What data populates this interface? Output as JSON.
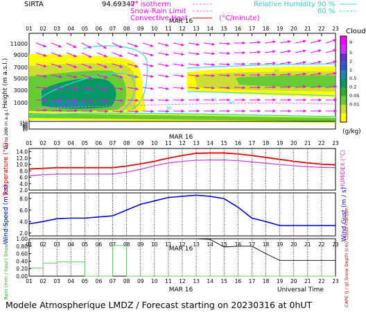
{
  "header": {
    "site": "SIRTA",
    "coords": "94.69347°",
    "legend": {
      "isotherm": "0° isotherm",
      "snow_rain": "Snow-Rain Limit",
      "convective": "Convective Heat",
      "convective_unit": "(°C/minute)",
      "rh_label": "Relative Humidity",
      "rh_90": "90 %",
      "rh_60": "60 %"
    }
  },
  "hours": [
    "01",
    "02",
    "03",
    "04",
    "05",
    "06",
    "07",
    "08",
    "09",
    "10",
    "11",
    "12",
    "13",
    "14",
    "15",
    "16",
    "17",
    "18",
    "19",
    "20",
    "21",
    "22",
    "23"
  ],
  "date_label": "MAR 16",
  "panel_cloud": {
    "ylabel": "Height  (m a.s.l.)",
    "ylabel2": "Up to 200 m a.g.l.",
    "yticks": [
      "11000",
      "9000",
      "7000",
      "5000",
      "3000",
      "1000",
      "150",
      "120",
      "90",
      "60",
      "30",
      "10"
    ],
    "colorbar_title": "Clouds",
    "colorbar_ticks": [
      "9",
      "5",
      "2",
      "1",
      "0.5",
      "0.2",
      "0.05",
      "0.01"
    ],
    "colorbar_unit": "(g/kg)",
    "colorbar_colors": [
      "#ff00ff",
      "#cc33ff",
      "#6633cc",
      "#3355cc",
      "#2288aa",
      "#009966",
      "#33aa33",
      "#66cc33",
      "#ccdd33",
      "#ffff00"
    ],
    "contour_labels": [
      "90",
      "60",
      "90",
      "90",
      "60"
    ]
  },
  "panel_temp": {
    "ylabel": "Temperature (°C)",
    "ylabel_right": "HUMIDEX (°C)",
    "yticks": [
      "14.0",
      "12.0",
      "10.0",
      "8.0",
      "6.0",
      "4.0",
      "2.0"
    ],
    "ylim": [
      2,
      15
    ]
  },
  "panel_wind": {
    "ylabel": "Wind Speed (m / s)",
    "ylabel_right": "Wind Gust (m / s)",
    "yticks": [
      "8.0",
      "6.0",
      "4.0",
      "2.0"
    ],
    "ylim": [
      1.5,
      9
    ]
  },
  "panel_rain": {
    "ylabel": "Rain (mm / hour) Snow (cm / hour)",
    "ylabel_right": "CAPE (J / g) Snow Depth (cm) Cloud Fraction",
    "yticks": [
      "1.00",
      "0.80",
      "0.60",
      "0.40",
      "0.20",
      "0.00"
    ],
    "ylim": [
      0,
      1
    ],
    "xlabel": "Universal Time"
  },
  "colors": {
    "temperature": "#dd0000",
    "humidex": "#cc33cc",
    "wind": "#0000cc",
    "rain": "#66cc66",
    "cloud_fraction": "#000000",
    "rh": "#33dddd",
    "arrows": "#ff00ff",
    "isotherm": "#ff66ff"
  },
  "chart_data": [
    {
      "type": "line",
      "title": "Temperature",
      "x": [
        "01",
        "02",
        "03",
        "04",
        "05",
        "06",
        "07",
        "08",
        "09",
        "10",
        "11",
        "12",
        "13",
        "14",
        "15",
        "16",
        "17",
        "18",
        "19",
        "20",
        "21",
        "22",
        "23"
      ],
      "series": [
        {
          "name": "Temperature (°C)",
          "values": [
            8.6,
            8.8,
            9.0,
            9.0,
            9.0,
            9.0,
            9.0,
            9.5,
            10.2,
            11.0,
            12.0,
            12.8,
            13.5,
            13.6,
            13.6,
            13.3,
            12.8,
            12.2,
            11.6,
            11.0,
            10.5,
            10.1,
            9.9
          ]
        },
        {
          "name": "HUMIDEX (°C)",
          "values": [
            6.5,
            6.8,
            7.0,
            7.0,
            7.0,
            7.0,
            7.0,
            7.6,
            8.5,
            9.6,
            10.5,
            11.0,
            11.3,
            11.4,
            11.4,
            11.2,
            10.8,
            10.4,
            10.0,
            9.6,
            9.3,
            9.1,
            9.0
          ]
        }
      ],
      "ylim": [
        2,
        15
      ]
    },
    {
      "type": "line",
      "title": "Wind Speed",
      "x": [
        "01",
        "02",
        "03",
        "04",
        "05",
        "06",
        "07",
        "08",
        "09",
        "10",
        "11",
        "12",
        "13",
        "14",
        "15",
        "16",
        "17",
        "18",
        "19",
        "20",
        "21",
        "22",
        "23"
      ],
      "series": [
        {
          "name": "Wind Speed (m / s)",
          "values": [
            3.6,
            4.0,
            4.5,
            4.6,
            4.6,
            4.8,
            5.0,
            6.0,
            7.0,
            7.6,
            8.2,
            8.4,
            8.6,
            8.4,
            8.0,
            6.5,
            4.6,
            4.0,
            3.3,
            3.3,
            3.3,
            3.3,
            3.3
          ]
        }
      ],
      "ylim": [
        1.5,
        9
      ]
    },
    {
      "type": "line",
      "title": "Rain / Cloud Fraction",
      "x": [
        "01",
        "02",
        "03",
        "04",
        "05",
        "06",
        "07",
        "08",
        "09",
        "10",
        "11",
        "12",
        "13",
        "14",
        "15",
        "16",
        "17",
        "18",
        "19",
        "20",
        "21",
        "22",
        "23"
      ],
      "series": [
        {
          "name": "Rain (mm / hour)",
          "values": [
            0.22,
            0.35,
            0.38,
            0.38,
            0.0,
            0.0,
            0.82,
            0.0,
            0.0,
            0.0,
            0.0,
            0.0,
            0.0,
            0.0,
            0.0,
            0.0,
            0.0,
            0.0,
            0.0,
            0.0,
            0.0,
            0.0,
            0.0
          ]
        },
        {
          "name": "Cloud Fraction",
          "values": [
            1,
            1,
            1,
            1,
            1,
            1,
            1,
            1,
            1,
            1,
            1,
            1,
            1,
            0.98,
            0.78,
            0.8,
            0.8,
            0.6,
            0.42,
            0.42,
            0.42,
            0.42,
            0.42
          ]
        }
      ],
      "ylim": [
        0,
        1
      ]
    }
  ],
  "footer": {
    "text": "Modele Atmospherique LMDZ / Forecast starting on 20230316 at 0hUT"
  }
}
